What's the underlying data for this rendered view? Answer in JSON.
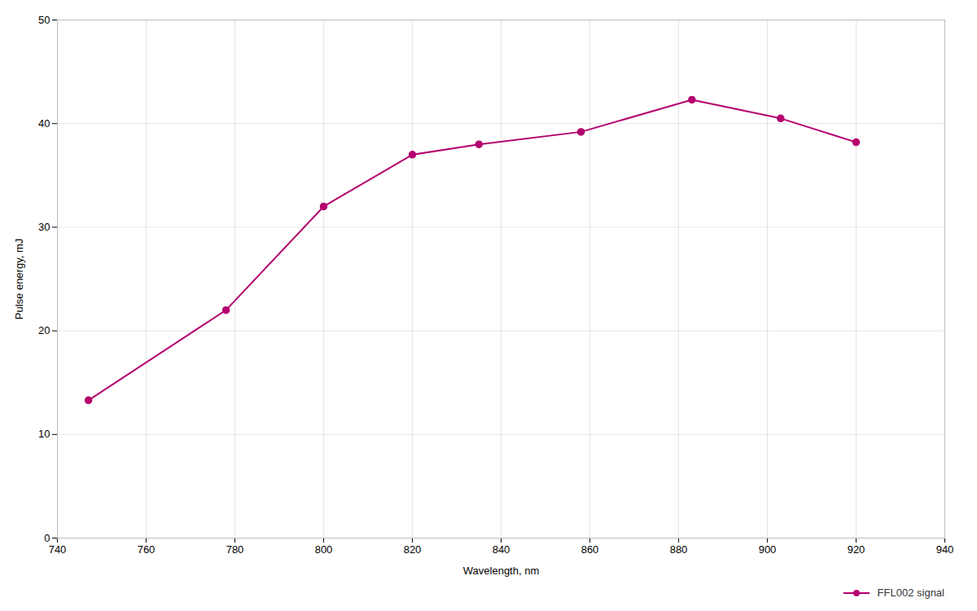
{
  "chart_data": {
    "type": "line",
    "xlabel": "Wavelength, nm",
    "ylabel": "Pulse energy, mJ",
    "x": [
      747,
      778,
      800,
      820,
      835,
      858,
      883,
      903,
      920
    ],
    "series": [
      {
        "name": "FFL002 signal",
        "color": "#b5006e",
        "marker": "circle",
        "values": [
          13.3,
          22.0,
          32.0,
          37.0,
          38.0,
          39.2,
          42.3,
          40.5,
          38.2
        ]
      }
    ],
    "xlim": [
      740,
      940
    ],
    "ylim": [
      0,
      50
    ],
    "xticks": [
      740,
      760,
      780,
      800,
      820,
      840,
      860,
      880,
      900,
      920,
      940
    ],
    "yticks": [
      0,
      10,
      20,
      30,
      40,
      50
    ],
    "grid": true,
    "legend": "lower right"
  }
}
